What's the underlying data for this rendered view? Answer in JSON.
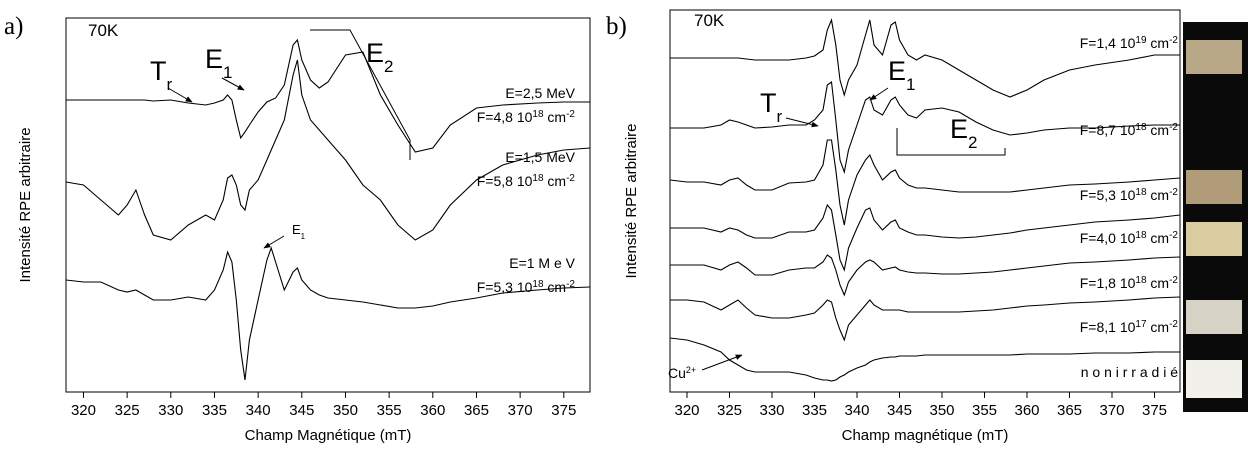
{
  "chart_data": [
    {
      "type": "line",
      "panel": "a)",
      "x_label": "Champ Magnétique (mT)",
      "y_label": "Intensité RPE arbitraire",
      "xlim": [
        318,
        378
      ],
      "xticks": [
        320,
        325,
        330,
        335,
        340,
        345,
        350,
        355,
        360,
        365,
        370,
        375
      ],
      "ylim": [
        0,
        374
      ],
      "annotations": [
        {
          "text": "70K"
        },
        {
          "text": "T",
          "sub": "r"
        },
        {
          "text": "E",
          "sub": "1"
        },
        {
          "text": "E",
          "sub": "2"
        },
        {
          "text": "E",
          "sub": "1"
        }
      ],
      "x": [
        318,
        320,
        322,
        324,
        325,
        326,
        327,
        328,
        330,
        332,
        334,
        335,
        336,
        336.5,
        337,
        337.5,
        338,
        338.5,
        339,
        340,
        341,
        341.5,
        342,
        343,
        344,
        344.5,
        345,
        346,
        347,
        348,
        350,
        352,
        354,
        356,
        358,
        360,
        362,
        365,
        368,
        372,
        375,
        378
      ],
      "series": [
        {
          "name": "E=2,5 MeV",
          "dose": "F=4,8 10",
          "dose_sup": "18",
          "unit": " cm",
          "unit_sup": "-2",
          "color": "#000",
          "values": [
            292,
            292,
            292,
            292,
            292,
            292,
            292,
            291,
            292,
            289,
            287,
            289,
            292,
            297,
            292,
            272,
            254,
            260,
            267,
            280,
            290,
            292,
            294,
            307,
            347,
            352,
            332,
            312,
            304,
            310,
            337,
            340,
            297,
            267,
            240,
            244,
            267,
            284,
            287,
            289,
            290,
            290
          ]
        },
        {
          "name": "E=1,5 MeV",
          "dose": "F=5,8 10",
          "dose_sup": "18",
          "unit": " cm",
          "unit_sup": "-2",
          "color": "#000",
          "values": [
            210,
            207,
            192,
            177,
            187,
            202,
            177,
            157,
            152,
            167,
            177,
            172,
            192,
            214,
            217,
            207,
            187,
            182,
            202,
            212,
            232,
            242,
            252,
            272,
            317,
            332,
            297,
            272,
            262,
            252,
            232,
            207,
            192,
            167,
            152,
            162,
            187,
            212,
            227,
            237,
            242,
            244
          ]
        },
        {
          "name": "E=1 M e V",
          "dose": "F=5,3 10",
          "dose_sup": "18",
          "unit": " cm",
          "unit_sup": "-2",
          "color": "#000",
          "values": [
            112,
            110,
            110,
            102,
            100,
            102,
            97,
            92,
            92,
            95,
            92,
            102,
            122,
            140,
            130,
            92,
            42,
            12,
            52,
            92,
            132,
            144,
            130,
            102,
            120,
            124,
            112,
            102,
            97,
            94,
            92,
            90,
            87,
            84,
            84,
            86,
            90,
            94,
            99,
            102,
            104,
            105
          ]
        }
      ]
    },
    {
      "type": "line",
      "panel": "b)",
      "x_label": "Champ magnétique (mT)",
      "y_label": "Intensité RPE arbitraire",
      "xlim": [
        318,
        378
      ],
      "xticks": [
        320,
        325,
        330,
        335,
        340,
        345,
        350,
        355,
        360,
        365,
        370,
        375
      ],
      "ylim": [
        0,
        382
      ],
      "annotations": [
        {
          "text": "70K"
        },
        {
          "text": "T",
          "sub": "r"
        },
        {
          "text": "E",
          "sub": "1"
        },
        {
          "text": "E",
          "sub": "2"
        },
        {
          "text": "Cu",
          "sup": "2+"
        }
      ],
      "x": [
        318,
        320,
        322,
        324,
        325,
        326,
        327,
        328,
        330,
        332,
        334,
        335,
        336,
        336.5,
        337,
        337.5,
        338,
        338.5,
        339,
        340,
        341,
        341.5,
        342,
        343,
        344,
        344.5,
        345,
        346,
        347,
        348,
        350,
        352,
        354,
        356,
        358,
        360,
        362,
        365,
        368,
        372,
        375,
        378
      ],
      "series": [
        {
          "name": "F=1,4 10",
          "name_sup": "19",
          "unit": " cm",
          "unit_sup": "-2",
          "color": "#000",
          "values": [
            334,
            334,
            334,
            334,
            334,
            334,
            333,
            332,
            332,
            332,
            334,
            336,
            342,
            362,
            372,
            347,
            312,
            297,
            312,
            327,
            357,
            372,
            347,
            337,
            367,
            370,
            352,
            337,
            332,
            337,
            332,
            322,
            312,
            302,
            295,
            302,
            312,
            322,
            327,
            332,
            337,
            337
          ]
        },
        {
          "name": "F=8,7 10",
          "name_sup": "18",
          "unit": " cm",
          "unit_sup": "-2",
          "color": "#000",
          "values": [
            264,
            264,
            264,
            267,
            272,
            270,
            267,
            264,
            265,
            267,
            267,
            272,
            282,
            307,
            310,
            272,
            232,
            220,
            242,
            267,
            292,
            295,
            282,
            277,
            292,
            295,
            287,
            277,
            274,
            282,
            284,
            280,
            270,
            262,
            257,
            259,
            262,
            264,
            264,
            266,
            267,
            267
          ]
        },
        {
          "name": "F=5,3 10",
          "name_sup": "18",
          "unit": " cm",
          "unit_sup": "-2",
          "color": "#000",
          "values": [
            212,
            210,
            210,
            207,
            212,
            214,
            207,
            202,
            202,
            209,
            210,
            212,
            227,
            252,
            252,
            222,
            187,
            167,
            192,
            217,
            232,
            237,
            227,
            212,
            220,
            222,
            214,
            207,
            204,
            204,
            202,
            200,
            200,
            200,
            200,
            202,
            204,
            207,
            208,
            210,
            212,
            214
          ]
        },
        {
          "name": "F=4,0 10",
          "name_sup": "18",
          "unit": " cm",
          "unit_sup": "-2",
          "color": "#000",
          "values": [
            164,
            164,
            164,
            160,
            164,
            162,
            157,
            154,
            154,
            160,
            160,
            162,
            174,
            187,
            182,
            157,
            132,
            122,
            144,
            164,
            182,
            184,
            172,
            162,
            170,
            172,
            164,
            160,
            157,
            157,
            155,
            154,
            155,
            157,
            159,
            162,
            164,
            167,
            170,
            172,
            174,
            177
          ]
        },
        {
          "name": "F=1,8 10",
          "name_sup": "18",
          "unit": " cm",
          "unit_sup": "-2",
          "color": "#000",
          "values": [
            127,
            127,
            127,
            122,
            127,
            130,
            124,
            117,
            117,
            122,
            124,
            124,
            130,
            137,
            134,
            122,
            107,
            97,
            110,
            122,
            130,
            132,
            130,
            122,
            124,
            125,
            122,
            120,
            119,
            119,
            118,
            118,
            119,
            120,
            122,
            124,
            126,
            129,
            130,
            132,
            134,
            135
          ]
        },
        {
          "name": "F=8,1 10",
          "name_sup": "17",
          "unit": " cm",
          "unit_sup": "-2",
          "color": "#000",
          "values": [
            92,
            92,
            90,
            82,
            87,
            92,
            84,
            77,
            74,
            74,
            77,
            79,
            87,
            92,
            90,
            74,
            62,
            52,
            67,
            77,
            87,
            92,
            87,
            82,
            82,
            82,
            82,
            80,
            80,
            80,
            80,
            80,
            81,
            82,
            84,
            86,
            87,
            89,
            90,
            92,
            94,
            95
          ]
        },
        {
          "name": "n o n  i r r a d i é",
          "color": "#000",
          "values": [
            54,
            52,
            47,
            40,
            32,
            27,
            22,
            20,
            20,
            20,
            17,
            14,
            12,
            12,
            11,
            12,
            15,
            17,
            20,
            24,
            27,
            30,
            32,
            34,
            35,
            35,
            36,
            36,
            36,
            37,
            37,
            37,
            37,
            37,
            37,
            38,
            38,
            38,
            39,
            39,
            40,
            40
          ]
        }
      ]
    }
  ]
}
